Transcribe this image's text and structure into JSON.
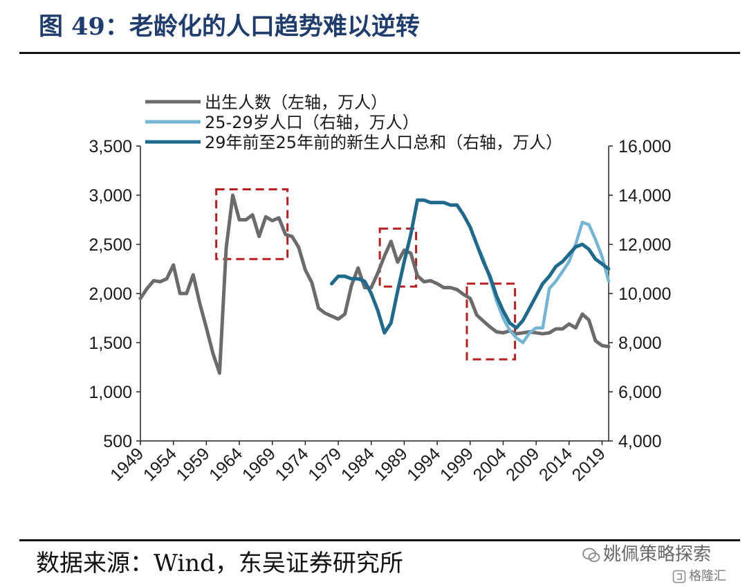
{
  "title": "图 49：老龄化的人口趋势难以逆转",
  "source": "数据来源：Wind，东吴证券研究所",
  "watermark": {
    "primary": "姚佩策略探索",
    "secondary": "格隆汇"
  },
  "colors": {
    "birth": "#6b6b6b",
    "age2529": "#74b4d4",
    "cumulative": "#1f6a8c",
    "highlight": "#b81e1e",
    "title": "#1f3c6e"
  },
  "chart_data": {
    "type": "line",
    "title": "",
    "left_axis": {
      "min": 500,
      "max": 3500,
      "ticks": [
        500,
        1000,
        1500,
        2000,
        2500,
        3000,
        3500
      ]
    },
    "right_axis": {
      "min": 4000,
      "max": 16000,
      "ticks": [
        4000,
        6000,
        8000,
        10000,
        12000,
        14000,
        16000
      ]
    },
    "x_axis": {
      "min": 1949,
      "max": 2020,
      "ticks": [
        1949,
        1954,
        1959,
        1964,
        1969,
        1974,
        1979,
        1984,
        1989,
        1994,
        1999,
        2004,
        2009,
        2014,
        2019
      ]
    },
    "legend_position": "top-left",
    "grid": false,
    "series": [
      {
        "name": "出生人数（左轴，万人）",
        "axis": "left",
        "color": "#6b6b6b",
        "x": [
          1949,
          1950,
          1951,
          1952,
          1953,
          1954,
          1955,
          1956,
          1957,
          1958,
          1959,
          1960,
          1961,
          1962,
          1963,
          1964,
          1965,
          1966,
          1967,
          1968,
          1969,
          1970,
          1971,
          1972,
          1973,
          1974,
          1975,
          1976,
          1977,
          1978,
          1979,
          1980,
          1981,
          1982,
          1983,
          1984,
          1985,
          1986,
          1987,
          1988,
          1989,
          1990,
          1991,
          1992,
          1993,
          1994,
          1995,
          1996,
          1997,
          1998,
          1999,
          2000,
          2001,
          2002,
          2003,
          2004,
          2005,
          2006,
          2007,
          2008,
          2009,
          2010,
          2011,
          2012,
          2013,
          2014,
          2015,
          2016,
          2017,
          2018,
          2019,
          2020
        ],
        "y": [
          1950,
          2050,
          2130,
          2120,
          2150,
          2290,
          2000,
          2000,
          2190,
          1900,
          1650,
          1390,
          1190,
          2460,
          3000,
          2750,
          2750,
          2800,
          2580,
          2780,
          2740,
          2770,
          2600,
          2580,
          2470,
          2240,
          2110,
          1850,
          1800,
          1770,
          1740,
          1790,
          2080,
          2260,
          2060,
          2060,
          2210,
          2380,
          2530,
          2320,
          2440,
          2410,
          2180,
          2120,
          2130,
          2100,
          2060,
          2060,
          2040,
          1990,
          1950,
          1780,
          1720,
          1660,
          1610,
          1600,
          1620,
          1590,
          1600,
          1610,
          1600,
          1590,
          1600,
          1640,
          1640,
          1690,
          1650,
          1790,
          1730,
          1520,
          1470,
          1460
        ]
      },
      {
        "name": "25-29岁人口（右轴，万人）",
        "axis": "right",
        "color": "#74b4d4",
        "x": [
          2000,
          2001,
          2002,
          2003,
          2004,
          2005,
          2006,
          2007,
          2008,
          2009,
          2010,
          2011,
          2012,
          2013,
          2014,
          2015,
          2016,
          2017,
          2018,
          2019,
          2020
        ],
        "y": [
          12000,
          11400,
          10600,
          9700,
          9000,
          8500,
          8200,
          8000,
          8400,
          8600,
          8600,
          10200,
          10500,
          10900,
          11300,
          12000,
          12900,
          12800,
          12200,
          11500,
          10500
        ]
      },
      {
        "name": "29年前至25年前的新生人口总和（右轴，万人）",
        "axis": "right",
        "color": "#1f6a8c",
        "x": [
          1978,
          1979,
          1980,
          1981,
          1982,
          1983,
          1984,
          1985,
          1986,
          1987,
          1988,
          1989,
          1990,
          1991,
          1992,
          1993,
          1994,
          1995,
          1996,
          1997,
          1998,
          1999,
          2000,
          2001,
          2002,
          2003,
          2004,
          2005,
          2006,
          2007,
          2008,
          2009,
          2010,
          2011,
          2012,
          2013,
          2014,
          2015,
          2016,
          2017,
          2018,
          2019,
          2020
        ],
        "y": [
          10400,
          10700,
          10700,
          10600,
          10600,
          10500,
          10000,
          9300,
          8400,
          8800,
          10100,
          11300,
          12400,
          13800,
          13800,
          13700,
          13700,
          13700,
          13600,
          13600,
          13200,
          12700,
          12000,
          11300,
          10700,
          9900,
          9300,
          8800,
          8600,
          8900,
          9400,
          9900,
          10400,
          10700,
          11100,
          11300,
          11600,
          11900,
          12000,
          11800,
          11400,
          11200,
          11000
        ]
      }
    ],
    "highlight_boxes": [
      {
        "x_from": 1960.5,
        "x_to": 1971.3,
        "y_from": 2350,
        "y_to": 3060,
        "axis": "left"
      },
      {
        "x_from": 1985.3,
        "x_to": 1990.8,
        "y_from": 2070,
        "y_to": 2660,
        "axis": "left"
      },
      {
        "x_from": 1998.5,
        "x_to": 2005.8,
        "y_from": 1330,
        "y_to": 2100,
        "axis": "left"
      }
    ]
  }
}
